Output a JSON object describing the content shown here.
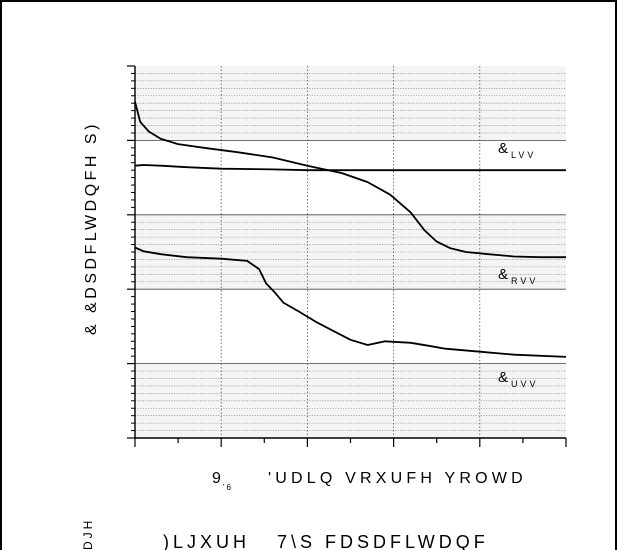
{
  "chart_data": {
    "type": "line",
    "title": "",
    "ylabel": "&  &DSDFLWDQFH S)",
    "xlabel_main": "9",
    "xlabel_sub": "'6",
    "xlabel_rest": "'UDLQ VRXUFH YROWD",
    "caption": ")LJXUH   7\\S FDSDFLWDQF",
    "left_fragment": "DJH",
    "ylim": [
      0,
      5
    ],
    "xlim": [
      0,
      25
    ],
    "grid": true,
    "series": [
      {
        "name": "&LVV",
        "label_main": "&",
        "label_sub": "LVV",
        "color": "#000000",
        "x": [
          0,
          0.3,
          0.8,
          1.5,
          2.5,
          4,
          6,
          8,
          10,
          12,
          13.5,
          14.8,
          16,
          16.8,
          17.5,
          18.3,
          19.2,
          20.5,
          22,
          23.5,
          25
        ],
        "y": [
          4.52,
          4.25,
          4.12,
          4.02,
          3.95,
          3.9,
          3.84,
          3.77,
          3.66,
          3.56,
          3.44,
          3.27,
          3.03,
          2.79,
          2.64,
          2.55,
          2.5,
          2.47,
          2.44,
          2.43,
          2.43
        ]
      },
      {
        "name": "&RVV",
        "label_main": "&",
        "label_sub": "RVV",
        "color": "#000000",
        "x": [
          0,
          0.5,
          1.5,
          3,
          5,
          8,
          10,
          12,
          15,
          18,
          21,
          25
        ],
        "y": [
          3.66,
          3.67,
          3.66,
          3.64,
          3.62,
          3.61,
          3.6,
          3.6,
          3.6,
          3.6,
          3.6,
          3.6
        ]
      },
      {
        "name": "&UVV",
        "label_main": "&",
        "label_sub": "UVV",
        "color": "#000000",
        "x": [
          0,
          0.5,
          1.5,
          3,
          5,
          6.5,
          7.2,
          7.6,
          8.1,
          8.6,
          9.5,
          10.5,
          11.5,
          12.5,
          13.5,
          14.5,
          16,
          17,
          18,
          20,
          22,
          25
        ],
        "y": [
          2.56,
          2.51,
          2.47,
          2.43,
          2.41,
          2.38,
          2.27,
          2.08,
          1.96,
          1.82,
          1.7,
          1.56,
          1.44,
          1.32,
          1.25,
          1.3,
          1.28,
          1.24,
          1.2,
          1.16,
          1.12,
          1.09
        ]
      }
    ]
  }
}
